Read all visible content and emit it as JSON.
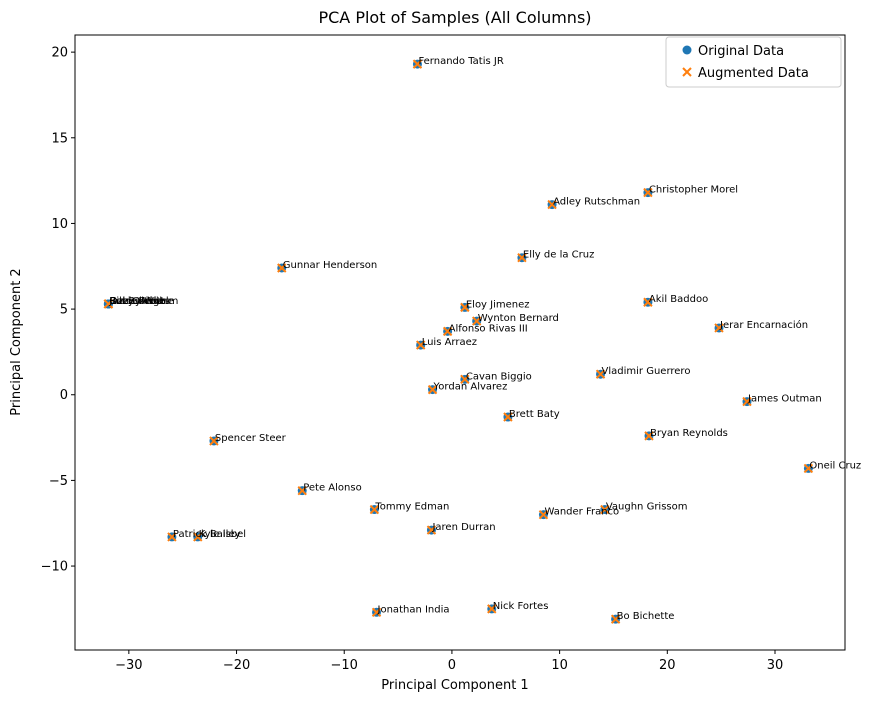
{
  "chart_data": {
    "type": "scatter",
    "title": "PCA Plot of Samples (All Columns)",
    "xlabel": "Principal Component 1",
    "ylabel": "Principal Component 2",
    "xlim": [
      -35,
      36.5
    ],
    "ylim": [
      -14.9,
      21
    ],
    "xticks": [
      -30,
      -20,
      -10,
      0,
      10,
      20,
      30
    ],
    "yticks": [
      -10,
      -5,
      0,
      5,
      10,
      15,
      20
    ],
    "xtick_labels": [
      "−30",
      "−20",
      "−10",
      "0",
      "10",
      "20",
      "30"
    ],
    "ytick_labels": [
      "−10",
      "−5",
      "0",
      "5",
      "10",
      "15",
      "20"
    ],
    "grid": false,
    "legend_position": "top-right",
    "series": [
      {
        "name": "Original Data",
        "marker": "circle",
        "color": "#1f77b4"
      },
      {
        "name": "Augmented Data",
        "marker": "x",
        "color": "#ff7f0e"
      }
    ],
    "points": [
      {
        "label": "Fernando Tatis JR",
        "x": -3.2,
        "y": 19.3
      },
      {
        "label": "Christopher Morel",
        "x": 18.2,
        "y": 11.8
      },
      {
        "label": "Adley Rutschman",
        "x": 9.3,
        "y": 11.1
      },
      {
        "label": "Elly de la Cruz",
        "x": 6.5,
        "y": 8.0
      },
      {
        "label": "Gunnar Henderson",
        "x": -15.8,
        "y": 7.4
      },
      {
        "label": "Cal Raleigh",
        "x": -31.9,
        "y": 5.3
      },
      {
        "label": "Ozzie Albies",
        "x": -31.9,
        "y": 5.3
      },
      {
        "label": "Bobby Witt",
        "x": -31.9,
        "y": 5.3
      },
      {
        "label": "Riley Greene",
        "x": -31.9,
        "y": 5.3
      },
      {
        "label": "Jazz Chisholm",
        "x": -31.9,
        "y": 5.3
      },
      {
        "label": "Akil Baddoo",
        "x": 18.2,
        "y": 5.4
      },
      {
        "label": "Eloy Jimenez",
        "x": 1.2,
        "y": 5.1
      },
      {
        "label": "Jerar Encarnación",
        "x": 24.8,
        "y": 3.9
      },
      {
        "label": "Wynton Bernard",
        "x": 2.3,
        "y": 4.3
      },
      {
        "label": "Alfonso Rivas III",
        "x": -0.4,
        "y": 3.7
      },
      {
        "label": "Luis Arraez",
        "x": -2.9,
        "y": 2.9
      },
      {
        "label": "Vladimir Guerrero",
        "x": 13.8,
        "y": 1.2
      },
      {
        "label": "Cavan Biggio",
        "x": 1.2,
        "y": 0.9
      },
      {
        "label": "Yordan Alvarez",
        "x": -1.8,
        "y": 0.3
      },
      {
        "label": "James Outman",
        "x": 27.4,
        "y": -0.4
      },
      {
        "label": "Brett Baty",
        "x": 5.2,
        "y": -1.3
      },
      {
        "label": "Bryan Reynolds",
        "x": 18.3,
        "y": -2.4
      },
      {
        "label": "Spencer Steer",
        "x": -22.1,
        "y": -2.7
      },
      {
        "label": "Oneil Cruz",
        "x": 33.1,
        "y": -4.3
      },
      {
        "label": "Pete Alonso",
        "x": -13.9,
        "y": -5.6
      },
      {
        "label": "Tommy Edman",
        "x": -7.2,
        "y": -6.7
      },
      {
        "label": "Vaughn Grissom",
        "x": 14.2,
        "y": -6.7
      },
      {
        "label": "Wander Franco",
        "x": 8.5,
        "y": -7.0
      },
      {
        "label": "Jaren Durran",
        "x": -1.9,
        "y": -7.9
      },
      {
        "label": "Patrick Bailey",
        "x": -26.0,
        "y": -8.3
      },
      {
        "label": "Kyle Isbel",
        "x": -23.6,
        "y": -8.3
      },
      {
        "label": "Jonathan India",
        "x": -7.0,
        "y": -12.7
      },
      {
        "label": "Nick Fortes",
        "x": 3.7,
        "y": -12.5
      },
      {
        "label": "Bo Bichette",
        "x": 15.2,
        "y": -13.1
      }
    ]
  }
}
